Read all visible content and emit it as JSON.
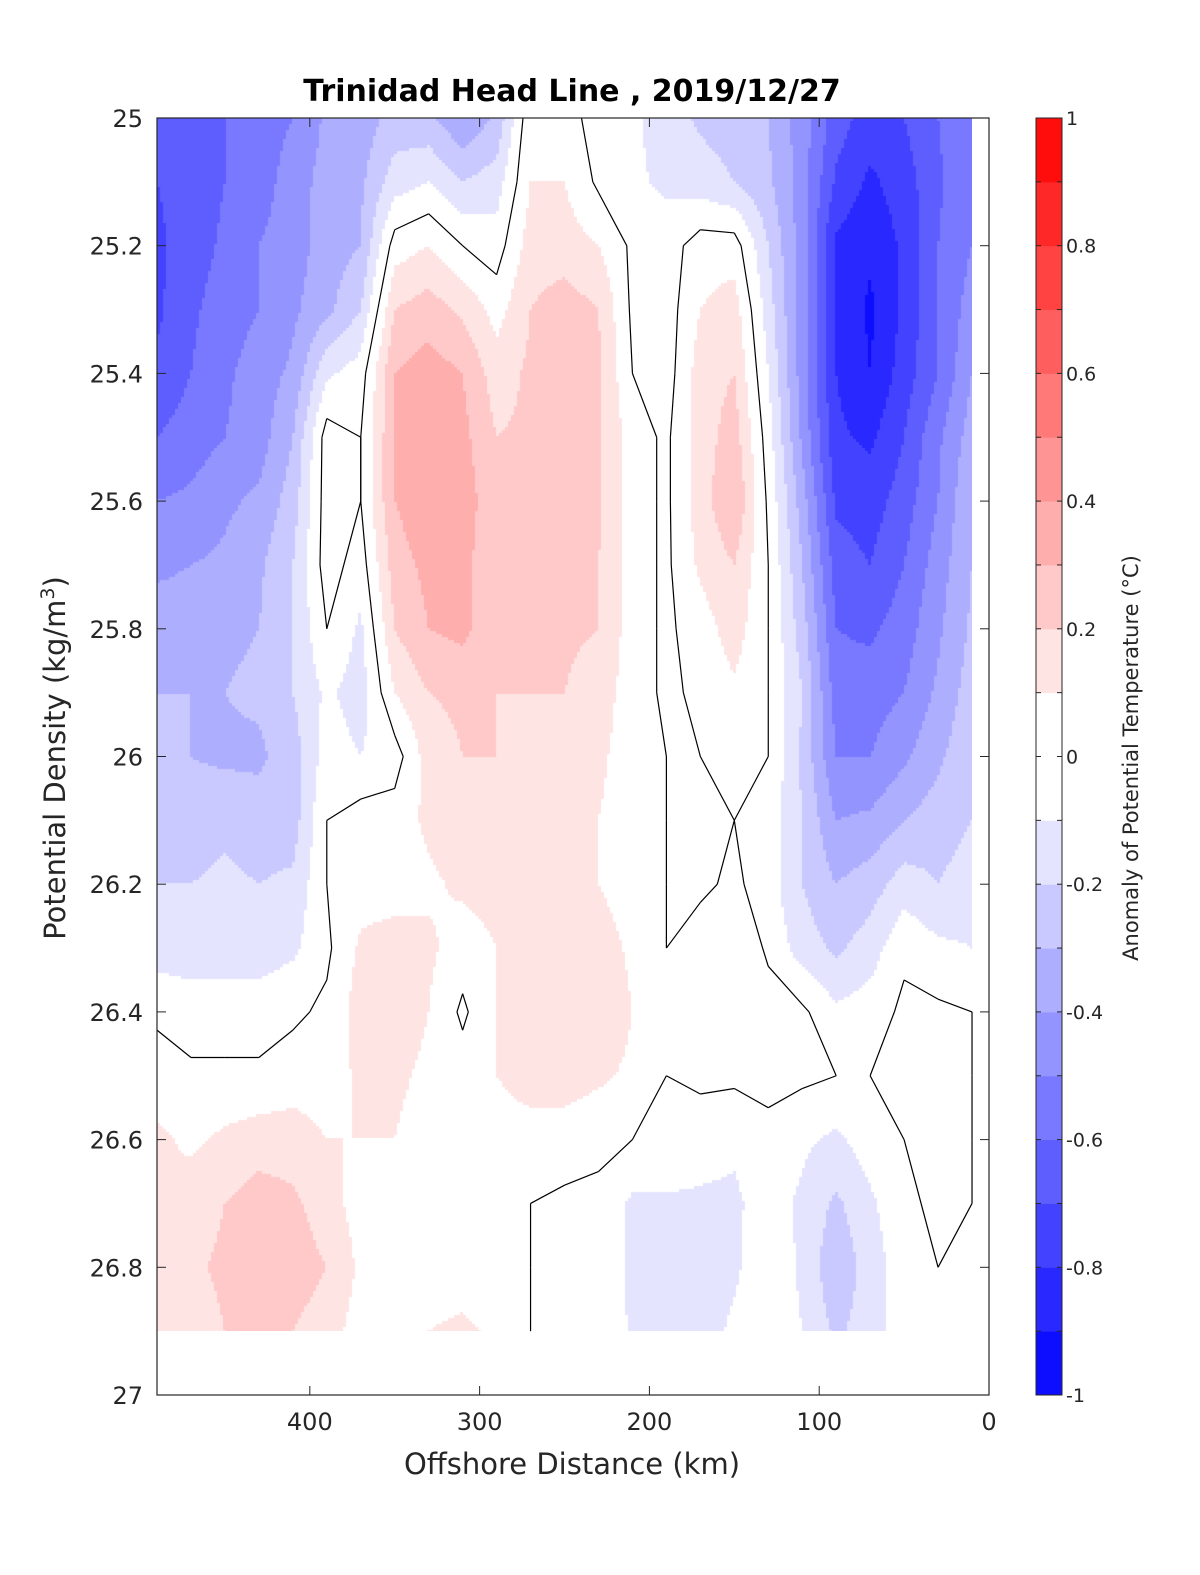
{
  "chart_data": {
    "type": "heatmap",
    "subtype": "filled contour section",
    "title": "Trinidad Head Line , 2019/12/27",
    "xlabel": "Offshore Distance (km)",
    "ylabel_main": "Potential Density (kg/m",
    "ylabel_sup": "3",
    "ylabel_close": ")",
    "colorbar_label": "Anomaly of Potential Temperature (°C)",
    "x_axis": {
      "min": 0,
      "max": 490,
      "reversed": true,
      "ticks": [
        400,
        300,
        200,
        100,
        0
      ]
    },
    "y_axis": {
      "min": 25,
      "max": 27,
      "reversed": true,
      "ticks": [
        "25",
        "25.2",
        "25.4",
        "25.6",
        "25.8",
        "26",
        "26.2",
        "26.4",
        "26.6",
        "26.8",
        "27"
      ]
    },
    "colorbar": {
      "range": [
        -1,
        1
      ],
      "step": 0.1,
      "ticks": [
        "-1",
        "-0.8",
        "-0.6",
        "-0.4",
        "-0.2",
        "0",
        "0.2",
        "0.4",
        "0.6",
        "0.8",
        "1"
      ],
      "colormap": "blue-white-red",
      "negative_color": "#0000ff",
      "neutral_color": "#ffffff",
      "positive_color": "#ff0000"
    },
    "data_extent": {
      "x": [
        10,
        490
      ],
      "y": [
        25,
        26.9
      ]
    },
    "contour_lines": {
      "level": 0,
      "color": "#000000"
    },
    "grid": false,
    "x_distance_km": [
      490,
      470,
      450,
      430,
      410,
      390,
      370,
      350,
      330,
      310,
      290,
      270,
      250,
      230,
      210,
      190,
      170,
      150,
      130,
      110,
      90,
      70,
      50,
      30,
      10
    ],
    "y_density": [
      25.0,
      25.1,
      25.2,
      25.3,
      25.4,
      25.5,
      25.6,
      25.7,
      25.8,
      25.9,
      26.0,
      26.1,
      26.2,
      26.3,
      26.4,
      26.5,
      26.6,
      26.7,
      26.8,
      26.9
    ],
    "anomaly_degC": [
      [
        -0.68,
        -0.66,
        -0.6,
        -0.55,
        -0.5,
        -0.38,
        -0.36,
        -0.26,
        -0.28,
        -0.39,
        -0.28,
        0.08,
        0.08,
        -0.08,
        -0.08,
        -0.15,
        -0.22,
        -0.25,
        -0.3,
        -0.45,
        -0.65,
        -0.75,
        -0.7,
        -0.6,
        -0.5
      ],
      [
        -0.7,
        -0.66,
        -0.6,
        -0.55,
        -0.45,
        -0.36,
        -0.32,
        -0.15,
        -0.1,
        -0.2,
        -0.15,
        0.1,
        0.1,
        -0.02,
        -0.08,
        -0.12,
        -0.15,
        -0.2,
        -0.28,
        -0.45,
        -0.72,
        -0.82,
        -0.75,
        -0.62,
        -0.5
      ],
      [
        -0.72,
        -0.65,
        -0.58,
        -0.5,
        -0.45,
        -0.35,
        -0.3,
        0.05,
        0.1,
        0.0,
        -0.05,
        0.15,
        0.15,
        0.1,
        -0.02,
        -0.05,
        0.05,
        0.05,
        -0.2,
        -0.45,
        -0.82,
        -0.88,
        -0.78,
        -0.6,
        -0.5
      ],
      [
        -0.72,
        -0.62,
        -0.55,
        -0.5,
        -0.42,
        -0.33,
        -0.2,
        0.2,
        0.25,
        0.18,
        0.06,
        0.2,
        0.25,
        0.2,
        -0.02,
        -0.05,
        0.1,
        0.15,
        -0.15,
        -0.45,
        -0.8,
        -0.92,
        -0.78,
        -0.6,
        -0.45
      ],
      [
        -0.68,
        -0.6,
        -0.52,
        -0.45,
        -0.38,
        -0.12,
        -0.05,
        0.3,
        0.35,
        0.3,
        0.15,
        0.22,
        0.25,
        0.22,
        0.0,
        -0.05,
        0.15,
        0.2,
        -0.1,
        -0.45,
        -0.8,
        -0.9,
        -0.75,
        -0.6,
        -0.4
      ],
      [
        -0.6,
        -0.55,
        -0.5,
        -0.45,
        -0.3,
        0.05,
        0.0,
        0.3,
        0.36,
        0.33,
        0.2,
        0.22,
        0.25,
        0.22,
        0.05,
        -0.02,
        0.15,
        0.25,
        -0.05,
        -0.42,
        -0.78,
        -0.82,
        -0.7,
        -0.52,
        -0.35
      ],
      [
        -0.5,
        -0.48,
        -0.42,
        -0.38,
        -0.25,
        0.05,
        0.0,
        0.3,
        0.38,
        0.36,
        0.22,
        0.22,
        0.25,
        0.22,
        0.05,
        -0.02,
        0.15,
        0.3,
        -0.02,
        -0.35,
        -0.72,
        -0.75,
        -0.65,
        -0.5,
        -0.3
      ],
      [
        -0.42,
        -0.4,
        -0.38,
        -0.32,
        -0.2,
        0.05,
        -0.05,
        0.25,
        0.33,
        0.33,
        0.22,
        0.22,
        0.25,
        0.2,
        0.05,
        -0.02,
        0.12,
        0.2,
        0.0,
        -0.3,
        -0.65,
        -0.7,
        -0.6,
        -0.45,
        -0.3
      ],
      [
        -0.35,
        -0.35,
        -0.32,
        -0.3,
        -0.2,
        0.0,
        -0.12,
        0.2,
        0.3,
        0.33,
        0.22,
        0.22,
        0.22,
        0.2,
        0.05,
        -0.02,
        0.05,
        0.15,
        0.0,
        -0.25,
        -0.6,
        -0.62,
        -0.55,
        -0.42,
        -0.28
      ],
      [
        -0.3,
        -0.3,
        -0.3,
        -0.28,
        -0.2,
        -0.08,
        -0.15,
        0.1,
        0.2,
        0.22,
        0.2,
        0.2,
        0.2,
        0.15,
        0.05,
        -0.02,
        0.02,
        0.08,
        0.0,
        -0.2,
        -0.55,
        -0.55,
        -0.5,
        -0.38,
        -0.25
      ],
      [
        -0.28,
        -0.3,
        -0.32,
        -0.32,
        -0.25,
        -0.05,
        -0.1,
        -0.05,
        0.15,
        0.2,
        0.2,
        0.18,
        0.15,
        0.12,
        0.05,
        0.0,
        0.0,
        0.02,
        0.0,
        -0.22,
        -0.5,
        -0.5,
        -0.42,
        -0.32,
        -0.22
      ],
      [
        -0.26,
        -0.25,
        -0.22,
        -0.25,
        -0.25,
        0.0,
        0.05,
        0.05,
        0.12,
        0.18,
        0.16,
        0.15,
        0.12,
        0.1,
        0.05,
        0.0,
        -0.02,
        0.0,
        -0.05,
        -0.2,
        -0.4,
        -0.38,
        -0.3,
        -0.25,
        -0.2
      ],
      [
        -0.2,
        -0.2,
        -0.18,
        -0.2,
        -0.18,
        0.0,
        0.05,
        0.05,
        0.08,
        0.12,
        0.14,
        0.15,
        0.12,
        0.1,
        0.05,
        0.0,
        -0.02,
        0.02,
        -0.05,
        -0.2,
        -0.3,
        -0.25,
        -0.15,
        -0.2,
        -0.15
      ],
      [
        -0.15,
        -0.15,
        -0.15,
        -0.15,
        -0.12,
        -0.02,
        0.12,
        0.15,
        0.12,
        0.05,
        0.1,
        0.15,
        0.18,
        0.15,
        0.08,
        0.0,
        0.05,
        0.1,
        -0.02,
        -0.15,
        -0.22,
        -0.15,
        -0.02,
        -0.08,
        -0.1
      ],
      [
        -0.02,
        -0.05,
        -0.05,
        -0.05,
        -0.02,
        0.02,
        0.15,
        0.15,
        0.1,
        -0.02,
        0.1,
        0.15,
        0.18,
        0.18,
        0.1,
        0.05,
        0.05,
        0.05,
        0.05,
        0.02,
        -0.08,
        -0.05,
        0.02,
        0.02,
        0.0
      ],
      [
        0.05,
        0.02,
        0.02,
        0.02,
        0.05,
        0.05,
        0.12,
        0.12,
        0.08,
        0.05,
        0.1,
        0.15,
        0.15,
        0.12,
        0.08,
        0.0,
        0.02,
        0.02,
        0.02,
        0.02,
        0.0,
        0.0,
        0.02,
        0.02,
        0.0
      ],
      [
        0.12,
        0.08,
        0.12,
        0.15,
        0.15,
        0.1,
        0.1,
        0.1,
        0.05,
        0.05,
        0.05,
        0.05,
        0.05,
        0.02,
        0.0,
        0.0,
        -0.05,
        -0.08,
        -0.02,
        -0.08,
        -0.12,
        -0.05,
        0.0,
        0.02,
        0.0
      ],
      [
        0.1,
        0.15,
        0.2,
        0.25,
        0.22,
        0.15,
        0.05,
        0.02,
        0.05,
        0.0,
        0.02,
        0.0,
        -0.02,
        -0.02,
        -0.12,
        -0.12,
        -0.12,
        -0.12,
        -0.05,
        -0.12,
        -0.22,
        -0.12,
        -0.02,
        0.02,
        0.0
      ],
      [
        0.15,
        0.18,
        0.22,
        0.3,
        0.25,
        0.2,
        0.08,
        0.02,
        0.05,
        0.05,
        0.02,
        0.0,
        0.0,
        -0.02,
        -0.12,
        -0.15,
        -0.15,
        -0.12,
        -0.02,
        -0.12,
        -0.28,
        -0.15,
        -0.05,
        0.0,
        0.0
      ],
      [
        0.12,
        0.15,
        0.2,
        0.22,
        0.2,
        0.15,
        0.05,
        0.05,
        0.1,
        0.12,
        0.08,
        0.0,
        0.0,
        0.0,
        -0.12,
        -0.15,
        -0.15,
        -0.08,
        -0.02,
        -0.1,
        -0.22,
        -0.15,
        -0.05,
        0.0,
        0.0
      ]
    ]
  }
}
